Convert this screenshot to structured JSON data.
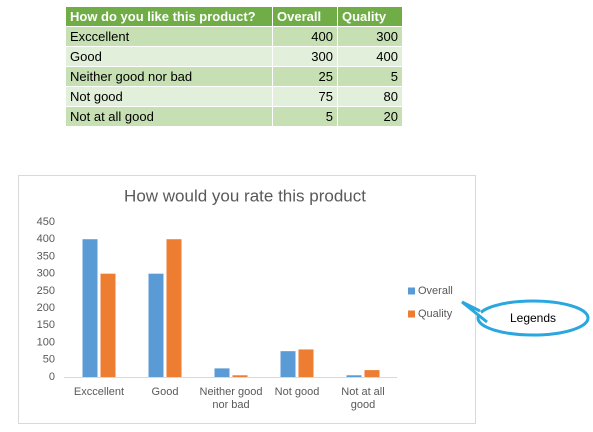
{
  "table": {
    "header": [
      "How do you like this product?",
      "Overall",
      "Quality"
    ],
    "rows": [
      [
        "Exccellent",
        "400",
        "300"
      ],
      [
        "Good",
        "300",
        "400"
      ],
      [
        "Neither good nor bad",
        "25",
        "5"
      ],
      [
        "Not good",
        "75",
        "80"
      ],
      [
        "Not at all good",
        "5",
        "20"
      ]
    ]
  },
  "chart_data": {
    "type": "bar",
    "title": "How would you rate this product",
    "categories": [
      "Exccellent",
      "Good",
      "Neither good nor bad",
      "Not good",
      "Not at all good"
    ],
    "series": [
      {
        "name": "Overall",
        "color": "#5b9bd5",
        "values": [
          400,
          300,
          25,
          75,
          5
        ]
      },
      {
        "name": "Quality",
        "color": "#ed7d31",
        "values": [
          300,
          400,
          5,
          80,
          20
        ]
      }
    ],
    "ylim": [
      0,
      450
    ],
    "yticks": [
      0,
      50,
      100,
      150,
      200,
      250,
      300,
      350,
      400,
      450
    ],
    "grid": false,
    "legend": "right"
  },
  "callout": "Legends"
}
